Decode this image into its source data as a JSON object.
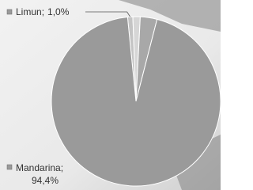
{
  "chart_data": {
    "type": "pie",
    "categories": [
      "Mandarina",
      "Limun",
      null,
      null
    ],
    "values": [
      94.4,
      1.0,
      1.4,
      3.2
    ],
    "value_labels": [
      "94,4%",
      "1,0%",
      null,
      null
    ],
    "label_separator": ";",
    "colors": [
      "#9a9a9a",
      "#c4c4c4",
      "#d6d6d6",
      "#a8a8a8"
    ]
  }
}
